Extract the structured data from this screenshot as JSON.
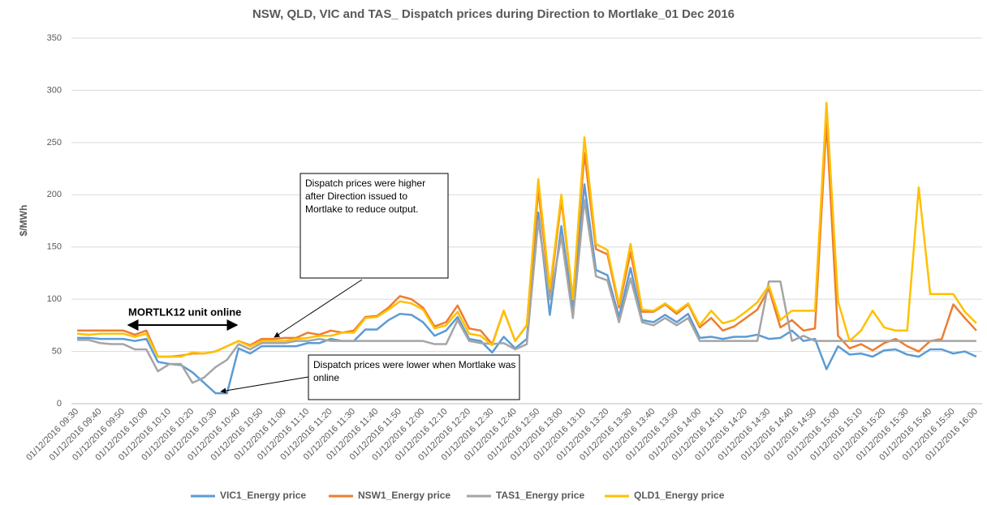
{
  "chart_data": {
    "type": "line",
    "title": "NSW, QLD, VIC and TAS_ Dispatch prices during Direction to Mortlake_01 Dec 2016",
    "y_label": "$/MWh",
    "categories": [
      "01/12/2016 09:30",
      null,
      "01/12/2016 09:40",
      null,
      "01/12/2016 09:50",
      null,
      "01/12/2016 10:00",
      null,
      "01/12/2016 10:10",
      null,
      "01/12/2016 10:20",
      null,
      "01/12/2016 10:30",
      null,
      "01/12/2016 10:40",
      null,
      "01/12/2016 10:50",
      null,
      "01/12/2016 11:00",
      null,
      "01/12/2016 11:10",
      null,
      "01/12/2016 11:20",
      null,
      "01/12/2016 11:30",
      null,
      "01/12/2016 11:40",
      null,
      "01/12/2016 11:50",
      null,
      "01/12/2016 12:00",
      null,
      "01/12/2016 12:10",
      null,
      "01/12/2016 12:20",
      null,
      "01/12/2016 12:30",
      null,
      "01/12/2016 12:40",
      null,
      "01/12/2016 12:50",
      null,
      "01/12/2016 13:00",
      null,
      "01/12/2016 13:10",
      null,
      "01/12/2016 13:20",
      null,
      "01/12/2016 13:30",
      null,
      "01/12/2016 13:40",
      null,
      "01/12/2016 13:50",
      null,
      "01/12/2016 14:00",
      null,
      "01/12/2016 14:10",
      null,
      "01/12/2016 14:20",
      null,
      "01/12/2016 14:30",
      null,
      "01/12/2016 14:40",
      null,
      "01/12/2016 14:50",
      null,
      "01/12/2016 15:00",
      null,
      "01/12/2016 15:10",
      null,
      "01/12/2016 15:20",
      null,
      "01/12/2016 15:30",
      null,
      "01/12/2016 15:40",
      null,
      "01/12/2016 15:50",
      null,
      "01/12/2016 16:00"
    ],
    "series": [
      {
        "name": "VIC1_Energy price",
        "color": "#5b9bd5",
        "values": [
          63,
          63,
          62,
          62,
          62,
          60,
          62,
          40,
          38,
          37,
          30,
          20,
          10,
          10,
          53,
          48,
          55,
          55,
          55,
          55,
          58,
          58,
          62,
          60,
          60,
          71,
          71,
          80,
          86,
          85,
          78,
          65,
          70,
          83,
          62,
          60,
          49,
          64,
          53,
          62,
          183,
          85,
          170,
          90,
          210,
          128,
          123,
          83,
          130,
          80,
          78,
          85,
          78,
          86,
          63,
          64,
          62,
          64,
          64,
          66,
          62,
          63,
          70,
          60,
          62,
          33,
          55,
          47,
          48,
          45,
          51,
          52,
          47,
          45,
          52,
          52,
          48,
          50,
          45
        ]
      },
      {
        "name": "NSW1_Energy price",
        "color": "#ed7d31",
        "values": [
          70,
          70,
          70,
          70,
          70,
          66,
          70,
          45,
          45,
          46,
          48,
          48,
          50,
          55,
          60,
          56,
          62,
          62,
          63,
          63,
          68,
          66,
          70,
          68,
          70,
          83,
          84,
          92,
          103,
          100,
          92,
          74,
          78,
          94,
          72,
          70,
          57,
          89,
          60,
          75,
          205,
          105,
          195,
          100,
          240,
          148,
          143,
          92,
          145,
          88,
          88,
          95,
          86,
          95,
          73,
          82,
          70,
          74,
          82,
          90,
          110,
          73,
          80,
          70,
          72,
          270,
          65,
          53,
          57,
          51,
          58,
          62,
          55,
          50,
          60,
          62,
          95,
          82,
          70
        ]
      },
      {
        "name": "TAS1_Energy price",
        "color": "#a5a5a5",
        "values": [
          61,
          61,
          58,
          57,
          57,
          52,
          52,
          31,
          38,
          38,
          20,
          25,
          35,
          42,
          57,
          52,
          58,
          58,
          58,
          60,
          60,
          62,
          60,
          60,
          60,
          60,
          60,
          60,
          60,
          60,
          60,
          57,
          57,
          80,
          60,
          58,
          57,
          58,
          52,
          57,
          175,
          100,
          160,
          82,
          195,
          122,
          118,
          78,
          120,
          78,
          75,
          82,
          75,
          82,
          60,
          60,
          60,
          60,
          60,
          60,
          117,
          117,
          60,
          65,
          60,
          60,
          60,
          60,
          60,
          60,
          60,
          60,
          60,
          60,
          60,
          60,
          60,
          60,
          60
        ]
      },
      {
        "name": "QLD1_Energy price",
        "color": "#ffc000",
        "values": [
          67,
          66,
          67,
          67,
          67,
          64,
          67,
          45,
          45,
          45,
          49,
          48,
          50,
          55,
          60,
          55,
          60,
          60,
          60,
          62,
          63,
          65,
          65,
          68,
          68,
          82,
          83,
          90,
          98,
          96,
          90,
          72,
          75,
          88,
          67,
          65,
          56,
          89,
          60,
          75,
          215,
          110,
          200,
          100,
          255,
          153,
          147,
          95,
          153,
          90,
          89,
          96,
          88,
          96,
          75,
          89,
          77,
          80,
          88,
          97,
          113,
          80,
          89,
          89,
          89,
          288,
          98,
          60,
          70,
          89,
          73,
          70,
          70,
          207,
          105,
          105,
          105,
          88,
          77
        ]
      }
    ],
    "ylim": [
      0,
      350
    ],
    "yticks": [
      0,
      50,
      100,
      150,
      200,
      250,
      300,
      350
    ],
    "grid": true,
    "legend": "bottom",
    "annotations": [
      "MORTLK12 unit online",
      "Dispatch prices were higher after Direction issued to Mortlake to reduce output.",
      "Dispatch prices were lower when Mortlake was online"
    ]
  }
}
